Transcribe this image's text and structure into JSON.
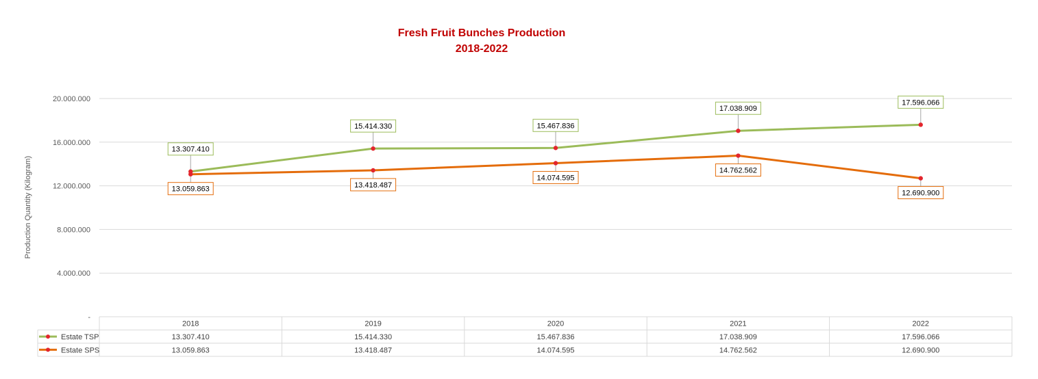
{
  "chart_data": {
    "type": "line",
    "title": "Fresh Fruit Bunches Production",
    "subtitle": "2018-2022",
    "ylabel": "Production Quantity (Kilogram)",
    "xlabel": "",
    "categories": [
      "2018",
      "2019",
      "2020",
      "2021",
      "2022"
    ],
    "ylim": [
      0,
      20000000
    ],
    "yticks": [
      0,
      4000000,
      8000000,
      12000000,
      16000000,
      20000000
    ],
    "ytick_labels": [
      "-",
      "4.000.000",
      "8.000.000",
      "12.000.000",
      "16.000.000",
      "20.000.000"
    ],
    "grid": true,
    "legend": "data-table",
    "series": [
      {
        "name": "Estate TSP",
        "color": "#9bbb59",
        "marker_color": "#e3262d",
        "values": [
          13307410,
          15414330,
          15467836,
          17038909,
          17596066
        ],
        "labels": [
          "13.307.410",
          "15.414.330",
          "15.467.836",
          "17.038.909",
          "17.596.066"
        ]
      },
      {
        "name": "Estate SPS",
        "color": "#e46c0a",
        "marker_color": "#e3262d",
        "values": [
          13059863,
          13418487,
          14074595,
          14762562,
          12690900
        ],
        "labels": [
          "13.059.863",
          "13.418.487",
          "14.074.595",
          "14.762.562",
          "12.690.900"
        ]
      }
    ]
  }
}
